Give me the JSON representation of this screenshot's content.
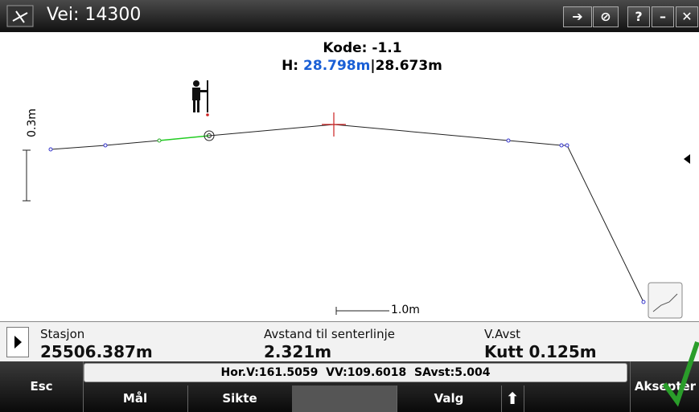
{
  "header": {
    "title": "Vei: 14300",
    "help": "?"
  },
  "view": {
    "code": "Kode: -1.1",
    "height_label": "H:",
    "height_design": "28.798m",
    "height_measured": "28.673m",
    "vertical_scale": "0.3m",
    "horizontal_scale": "1.0m"
  },
  "status": [
    {
      "label": "Stasjon",
      "value": "25506.387m"
    },
    {
      "label": "Avstand til senterlinje",
      "value": "2.321m"
    },
    {
      "label": "V.Avst",
      "value": "Kutt 0.125m"
    }
  ],
  "info": "Hor.V:161.5059  VV:109.6018  SAvst:5.004",
  "buttons": {
    "esc": "Esc",
    "measure": "Mål",
    "sight": "Sikte",
    "options": "Valg",
    "accept": "Aksepter"
  }
}
